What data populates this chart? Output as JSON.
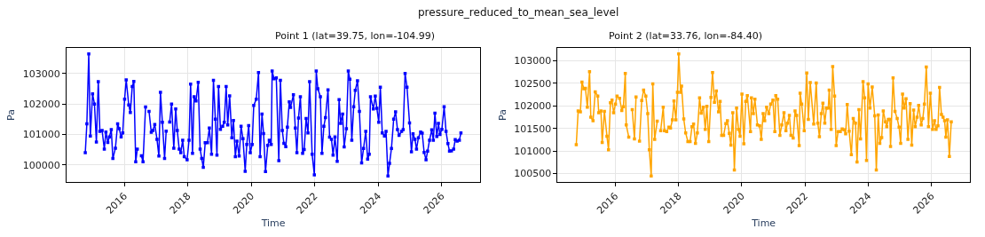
{
  "chart_data": [
    {
      "type": "line",
      "title": "Point 1 (lat=39.75, lon=-104.99)",
      "xlabel": "Time",
      "ylabel": "Pa",
      "annotations": [
        "pressure_reduced_to_mean_sea_level"
      ],
      "x": [
        2014.77,
        2014.82,
        2014.88,
        2014.93,
        2015.0,
        2015.06,
        2015.12,
        2015.18,
        2015.23,
        2015.3,
        2015.37,
        2015.42,
        2015.48,
        2015.53,
        2015.59,
        2015.64,
        2015.72,
        2015.79,
        2015.84,
        2015.9,
        2015.95,
        2016.01,
        2016.06,
        2016.14,
        2016.19,
        2016.25,
        2016.3,
        2016.36,
        2016.41,
        2016.48,
        2016.54,
        2016.59,
        2016.67,
        2016.72,
        2016.78,
        2016.85,
        2016.9,
        2016.96,
        2017.03,
        2017.09,
        2017.14,
        2017.2,
        2017.27,
        2017.32,
        2017.38,
        2017.43,
        2017.49,
        2017.56,
        2017.62,
        2017.67,
        2017.73,
        2017.78,
        2017.84,
        2017.89,
        2017.98,
        2018.04,
        2018.09,
        2018.15,
        2018.2,
        2018.26,
        2018.33,
        2018.39,
        2018.44,
        2018.49,
        2018.55,
        2018.62,
        2018.68,
        2018.75,
        2018.81,
        2018.87,
        2018.92,
        2018.97,
        2019.03,
        2019.1,
        2019.15,
        2019.21,
        2019.26,
        2019.32,
        2019.39,
        2019.44,
        2019.5,
        2019.55,
        2019.62,
        2019.68,
        2019.74,
        2019.81,
        2019.86,
        2019.92,
        2019.97,
        2020.03,
        2020.08,
        2020.16,
        2020.23,
        2020.28,
        2020.34,
        2020.39,
        2020.45,
        2020.52,
        2020.57,
        2020.63,
        2020.66,
        2020.72,
        2020.79,
        2020.87,
        2020.92,
        2020.98,
        2021.03,
        2021.09,
        2021.14,
        2021.2,
        2021.24,
        2021.33,
        2021.39,
        2021.44,
        2021.49,
        2021.55,
        2021.62,
        2021.67,
        2021.73,
        2021.79,
        2021.84,
        2021.92,
        2021.99,
        2022.05,
        2022.1,
        2022.18,
        2022.23,
        2022.29,
        2022.34,
        2022.42,
        2022.47,
        2022.53,
        2022.58,
        2022.64,
        2022.71,
        2022.77,
        2022.82,
        2022.88,
        2022.93,
        2023.0,
        2023.06,
        2023.11,
        2023.17,
        2023.23,
        2023.28,
        2023.35,
        2023.41,
        2023.48,
        2023.54,
        2023.61,
        2023.67,
        2023.72,
        2023.76,
        2023.85,
        2023.91,
        2023.96,
        2024.02,
        2024.07,
        2024.13,
        2024.2,
        2024.25,
        2024.31,
        2024.36,
        2024.42,
        2024.49,
        2024.55,
        2024.61,
        2024.66,
        2024.74,
        2024.79,
        2024.85,
        2024.91,
        2024.99,
        2025.05,
        2025.1,
        2025.16,
        2025.21,
        2025.27,
        2025.34,
        2025.39,
        2025.45,
        2025.51,
        2025.56,
        2025.62,
        2025.69,
        2025.74,
        2025.79,
        2025.85,
        2025.9,
        2025.95,
        2026.01,
        2026.08,
        2026.14,
        2026.2,
        2026.25,
        2026.31,
        2026.38,
        2026.43,
        2026.49,
        2026.56,
        2026.61
      ],
      "series": [
        {
          "color": "#0000ff",
          "values": [
            100400,
            101350,
            103640,
            100950,
            102330,
            102000,
            100750,
            102730,
            101100,
            101130,
            100520,
            101080,
            100740,
            100920,
            101160,
            100210,
            100550,
            101350,
            101190,
            100920,
            101050,
            102160,
            102790,
            101970,
            101720,
            102570,
            102740,
            100100,
            100520,
            null,
            100300,
            100100,
            101900,
            null,
            101760,
            101070,
            101130,
            101330,
            100840,
            100290,
            102380,
            101400,
            100210,
            101110,
            null,
            101410,
            102000,
            100550,
            101840,
            101130,
            100520,
            100400,
            100810,
            100270,
            100170,
            100810,
            102650,
            100380,
            102240,
            102100,
            102710,
            100520,
            100210,
            99920,
            100730,
            100730,
            101210,
            100350,
            102780,
            101500,
            100320,
            102570,
            101170,
            101270,
            101400,
            102570,
            101310,
            102270,
            100890,
            101460,
            100270,
            100780,
            100290,
            101270,
            100860,
            99790,
            100670,
            101290,
            100400,
            100670,
            101950,
            102160,
            103030,
            100270,
            101670,
            101030,
            99780,
            100640,
            100810,
            100670,
            103080,
            102830,
            102860,
            100140,
            102780,
            101130,
            100710,
            100600,
            101240,
            102070,
            101890,
            102300,
            101210,
            100400,
            101540,
            102240,
            100380,
            100500,
            101520,
            101050,
            102730,
            100350,
            99670,
            103080,
            102500,
            102240,
            100380,
            101270,
            101550,
            102460,
            100910,
            100840,
            100320,
            100920,
            100120,
            102140,
            101360,
            101670,
            100590,
            101190,
            103080,
            102810,
            100810,
            101910,
            102450,
            102760,
            101760,
            100070,
            100540,
            101100,
            100190,
            100350,
            102240,
            101840,
            102260,
            101860,
            101400,
            102550,
            101050,
            100950,
            101100,
            99640,
            100050,
            100540,
            101500,
            101740,
            101160,
            100970,
            101100,
            101160,
            103000,
            102550,
            101380,
            100430,
            101020,
            100840,
            100520,
            100890,
            101080,
            101040,
            100410,
            100170,
            100450,
            100810,
            101150,
            100810,
            101700,
            100930,
            101360,
            101000,
            101170,
            101910,
            101100,
            100700,
            100450,
            100460,
            100520,
            100830,
            100780,
            100810,
            101050
          ]
        }
      ],
      "xlim": [
        2014.18,
        2027.22
      ],
      "xticks": [
        2016,
        2018,
        2020,
        2022,
        2024,
        2026
      ],
      "ylim": [
        99440,
        103840
      ],
      "yticks": [
        100000,
        101000,
        102000,
        103000
      ],
      "grid": true,
      "marker": "square",
      "line_style": "solid"
    },
    {
      "type": "line",
      "title": "Point 2 (lat=33.76, lon=-84.40)",
      "xlabel": "Time",
      "ylabel": "Pa",
      "x": [
        2014.77,
        2014.83,
        2014.9,
        2014.95,
        2015.01,
        2015.06,
        2015.12,
        2015.19,
        2015.23,
        2015.3,
        2015.37,
        2015.45,
        2015.48,
        2015.55,
        2015.59,
        2015.66,
        2015.74,
        2015.79,
        2015.85,
        2015.9,
        2015.95,
        2016.01,
        2016.06,
        2016.14,
        2016.21,
        2016.26,
        2016.32,
        2016.35,
        2016.43,
        2016.48,
        2016.54,
        2016.61,
        2016.66,
        2016.72,
        2016.77,
        2016.84,
        2016.9,
        2016.97,
        2017.03,
        2017.08,
        2017.14,
        2017.19,
        2017.25,
        2017.33,
        2017.38,
        2017.44,
        2017.52,
        2017.56,
        2017.63,
        2017.7,
        2017.75,
        2017.81,
        2017.86,
        2017.92,
        2017.97,
        2018.01,
        2018.07,
        2018.1,
        2018.17,
        2018.23,
        2018.3,
        2018.37,
        2018.43,
        2018.48,
        2018.54,
        2018.6,
        2018.67,
        2018.72,
        2018.79,
        2018.85,
        2018.9,
        2018.96,
        2019.03,
        2019.08,
        2019.14,
        2019.2,
        2019.27,
        2019.32,
        2019.37,
        2019.43,
        2019.5,
        2019.55,
        2019.61,
        2019.66,
        2019.72,
        2019.77,
        2019.84,
        2019.9,
        2019.95,
        2020.01,
        2020.07,
        2020.13,
        2020.18,
        2020.28,
        2020.31,
        2020.37,
        2020.42,
        2020.5,
        2020.57,
        2020.62,
        2020.68,
        2020.73,
        2020.79,
        2020.86,
        2020.92,
        2020.99,
        2021.05,
        2021.08,
        2021.14,
        2021.21,
        2021.27,
        2021.34,
        2021.4,
        2021.45,
        2021.51,
        2021.56,
        2021.63,
        2021.69,
        2021.74,
        2021.82,
        2021.85,
        2021.9,
        2021.98,
        2022.06,
        2022.11,
        2022.17,
        2022.28,
        2022.36,
        2022.41,
        2022.46,
        2022.52,
        2022.57,
        2022.63,
        2022.68,
        2022.74,
        2022.77,
        2022.83,
        2022.88,
        2022.94,
        2022.99,
        2023.05,
        2023.12,
        2023.18,
        2023.24,
        2023.29,
        2023.34,
        2023.4,
        2023.47,
        2023.53,
        2023.6,
        2023.65,
        2023.71,
        2023.76,
        2023.84,
        2023.89,
        2023.95,
        2024.0,
        2024.06,
        2024.13,
        2024.21,
        2024.26,
        2024.32,
        2024.37,
        2024.43,
        2024.48,
        2024.55,
        2024.59,
        2024.64,
        2024.69,
        2024.71,
        2024.79,
        2024.85,
        2024.92,
        2024.98,
        2025.03,
        2025.09,
        2025.14,
        2025.2,
        2025.26,
        2025.33,
        2025.38,
        2025.44,
        2025.49,
        2025.55,
        2025.6,
        2025.68,
        2025.73,
        2025.78,
        2025.84,
        2025.91,
        2025.97,
        2026.04,
        2026.1,
        2026.15,
        2026.21,
        2026.26,
        2026.32,
        2026.37,
        2026.42,
        2026.46,
        2026.51,
        2026.57,
        2026.63
      ],
      "series": [
        {
          "color": "#ffa500",
          "values": [
            101140,
            101890,
            101870,
            102530,
            102380,
            102390,
            101970,
            102760,
            101750,
            101670,
            102310,
            102220,
            101850,
            101890,
            101190,
            101880,
            101330,
            101030,
            102070,
            102130,
            101850,
            102040,
            102220,
            102170,
            101900,
            101980,
            102720,
            101580,
            101310,
            null,
            101920,
            101270,
            102200,
            null,
            101220,
            102120,
            102350,
            102220,
            101830,
            101030,
            100450,
            102490,
            101260,
            101660,
            null,
            101450,
            101970,
            101450,
            101430,
            101530,
            101510,
            101690,
            102110,
            101690,
            102300,
            103150,
            102300,
            102440,
            101710,
            101400,
            101210,
            101210,
            101540,
            101600,
            101170,
            101400,
            102180,
            101840,
            101970,
            101480,
            101990,
            101210,
            102190,
            102740,
            102080,
            102330,
            101870,
            102100,
            101350,
            101350,
            101610,
            101670,
            101390,
            101130,
            101850,
            100580,
            101950,
            101480,
            101330,
            102260,
            101160,
            102100,
            102230,
            101430,
            102180,
            101830,
            102150,
            101580,
            101560,
            101260,
            101830,
            101670,
            101970,
            101830,
            102040,
            102130,
            101430,
            102230,
            102150,
            101350,
            101580,
            101850,
            101450,
            101620,
            101790,
            101350,
            101290,
            101890,
            101790,
            101120,
            102280,
            102040,
            101450,
            102730,
            101700,
            102520,
            101600,
            102510,
            101620,
            101320,
            101830,
            102060,
            101620,
            101950,
            101950,
            102350,
            101480,
            102870,
            102220,
            101120,
            101430,
            101430,
            101490,
            101470,
            101380,
            102030,
            101440,
            100920,
            101720,
            101620,
            100760,
            101920,
            101270,
            102540,
            102180,
            100790,
            102490,
            101950,
            102420,
            101780,
            100580,
            101800,
            101170,
            101300,
            101890,
            101650,
            101540,
            101700,
            101700,
            101100,
            102620,
            101880,
            101720,
            101530,
            101170,
            102260,
            101950,
            102160,
            101260,
            102050,
            101130,
            101910,
            101540,
            101750,
            102010,
            101580,
            101720,
            102040,
            102860,
            101540,
            102280,
            101480,
            101670,
            101480,
            101560,
            102410,
            101810,
            101750,
            101670,
            101310,
            101690,
            100880,
            101650
          ]
        }
      ],
      "xlim": [
        2014.18,
        2027.22
      ],
      "xticks": [
        2016,
        2018,
        2020,
        2022,
        2024,
        2026
      ],
      "ylim": [
        100315,
        103285
      ],
      "yticks": [
        100500,
        101000,
        101500,
        102000,
        102500,
        103000
      ],
      "grid": true,
      "marker": "square",
      "line_style": "solid"
    }
  ]
}
